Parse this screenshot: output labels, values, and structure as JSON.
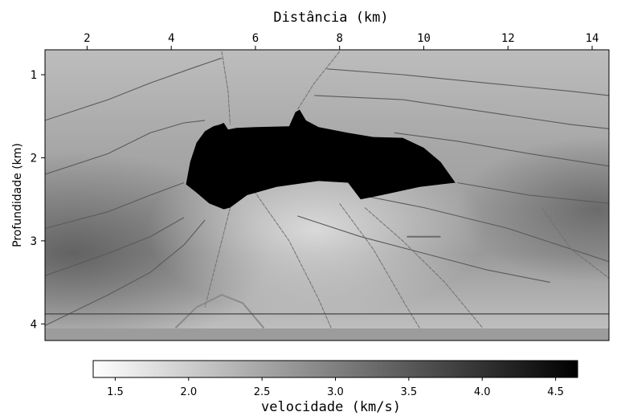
{
  "chart_data": {
    "type": "heatmap",
    "title": "",
    "xlabel": "Distância (km)",
    "ylabel": "Profundidade (km)",
    "x_axis_position": "top",
    "xlim": [
      1.0,
      14.4
    ],
    "ylim": [
      4.2,
      0.7
    ],
    "xticks": [
      2,
      4,
      6,
      8,
      10,
      12,
      14
    ],
    "yticks": [
      1,
      2,
      3,
      4
    ],
    "grid": false,
    "colormap": "gray (white = low, black = high)",
    "colorbar": {
      "label": "velocidade (km/s)",
      "range": [
        1.35,
        4.65
      ],
      "ticks": [
        1.5,
        2.0,
        2.5,
        3.0,
        3.5,
        4.0,
        4.5
      ],
      "placement": "bottom"
    },
    "salt_body": {
      "velocity": 4.5,
      "outline_km": [
        [
          4.35,
          2.32
        ],
        [
          4.45,
          2.05
        ],
        [
          4.6,
          1.82
        ],
        [
          4.8,
          1.68
        ],
        [
          5.0,
          1.62
        ],
        [
          5.15,
          1.6
        ],
        [
          5.25,
          1.58
        ],
        [
          5.35,
          1.66
        ],
        [
          5.55,
          1.64
        ],
        [
          6.0,
          1.63
        ],
        [
          6.8,
          1.62
        ],
        [
          6.95,
          1.45
        ],
        [
          7.05,
          1.42
        ],
        [
          7.2,
          1.55
        ],
        [
          7.5,
          1.63
        ],
        [
          8.2,
          1.7
        ],
        [
          8.8,
          1.75
        ],
        [
          9.5,
          1.76
        ],
        [
          10.0,
          1.88
        ],
        [
          10.4,
          2.05
        ],
        [
          10.75,
          2.3
        ],
        [
          10.4,
          2.32
        ],
        [
          9.9,
          2.35
        ],
        [
          9.0,
          2.45
        ],
        [
          8.5,
          2.5
        ],
        [
          8.2,
          2.3
        ],
        [
          7.5,
          2.28
        ],
        [
          6.5,
          2.35
        ],
        [
          5.8,
          2.45
        ],
        [
          5.4,
          2.6
        ],
        [
          5.25,
          2.62
        ],
        [
          4.9,
          2.55
        ],
        [
          4.6,
          2.42
        ]
      ]
    },
    "background_velocity": {
      "shallow": 1.5,
      "deep_sediment": 3.2,
      "low_velocity_bottom": 2.0
    },
    "horizons_km": [
      [
        [
          1.0,
          1.55
        ],
        [
          2.5,
          1.3
        ],
        [
          3.5,
          1.1
        ],
        [
          4.5,
          0.92
        ],
        [
          5.2,
          0.8
        ]
      ],
      [
        [
          1.0,
          2.2
        ],
        [
          2.5,
          1.95
        ],
        [
          3.5,
          1.7
        ],
        [
          4.3,
          1.58
        ],
        [
          4.8,
          1.55
        ]
      ],
      [
        [
          1.0,
          2.85
        ],
        [
          2.5,
          2.65
        ],
        [
          3.5,
          2.45
        ],
        [
          4.3,
          2.3
        ]
      ],
      [
        [
          1.0,
          3.42
        ],
        [
          2.5,
          3.15
        ],
        [
          3.5,
          2.95
        ],
        [
          4.3,
          2.72
        ]
      ],
      [
        [
          7.7,
          0.93
        ],
        [
          9.5,
          1.0
        ],
        [
          11.5,
          1.1
        ],
        [
          13.5,
          1.2
        ],
        [
          14.4,
          1.25
        ]
      ],
      [
        [
          7.4,
          1.25
        ],
        [
          9.5,
          1.3
        ],
        [
          11.5,
          1.45
        ],
        [
          13.5,
          1.6
        ],
        [
          14.4,
          1.65
        ]
      ],
      [
        [
          9.3,
          1.7
        ],
        [
          10.8,
          1.8
        ],
        [
          12.5,
          1.95
        ],
        [
          14.4,
          2.1
        ]
      ],
      [
        [
          10.8,
          2.3
        ],
        [
          12.5,
          2.45
        ],
        [
          14.4,
          2.55
        ]
      ],
      [
        [
          8.5,
          2.45
        ],
        [
          10.0,
          2.6
        ],
        [
          12.0,
          2.85
        ],
        [
          14.4,
          3.25
        ]
      ],
      [
        [
          7.0,
          2.7
        ],
        [
          8.5,
          2.95
        ],
        [
          10.0,
          3.15
        ],
        [
          11.5,
          3.35
        ],
        [
          13.0,
          3.5
        ]
      ],
      [
        [
          1.0,
          4.02
        ],
        [
          2.5,
          3.65
        ],
        [
          3.5,
          3.38
        ],
        [
          4.3,
          3.05
        ],
        [
          4.8,
          2.75
        ]
      ]
    ],
    "faults_km": [
      [
        [
          5.2,
          0.72
        ],
        [
          5.35,
          1.2
        ],
        [
          5.4,
          1.6
        ]
      ],
      [
        [
          8.0,
          0.72
        ],
        [
          7.4,
          1.1
        ],
        [
          7.0,
          1.42
        ]
      ],
      [
        [
          5.4,
          2.6
        ],
        [
          5.1,
          3.2
        ],
        [
          4.8,
          3.8
        ]
      ],
      [
        [
          5.9,
          2.35
        ],
        [
          6.8,
          3.0
        ],
        [
          7.5,
          3.7
        ],
        [
          7.8,
          4.05
        ]
      ],
      [
        [
          8.0,
          2.55
        ],
        [
          8.8,
          3.1
        ],
        [
          9.6,
          3.8
        ],
        [
          9.9,
          4.05
        ]
      ],
      [
        [
          8.6,
          2.6
        ],
        [
          9.5,
          3.0
        ],
        [
          10.5,
          3.5
        ],
        [
          11.4,
          4.05
        ]
      ],
      [
        [
          12.8,
          2.6
        ],
        [
          13.5,
          3.1
        ],
        [
          14.4,
          3.45
        ]
      ]
    ],
    "small_lens_km": [
      [
        9.6,
        2.95
      ],
      [
        10.4,
        2.95
      ]
    ],
    "arch_km": [
      [
        4.1,
        4.05
      ],
      [
        4.6,
        3.8
      ],
      [
        5.2,
        3.65
      ],
      [
        5.7,
        3.75
      ],
      [
        6.2,
        4.05
      ]
    ],
    "water_bottom_line_km": 3.88
  }
}
